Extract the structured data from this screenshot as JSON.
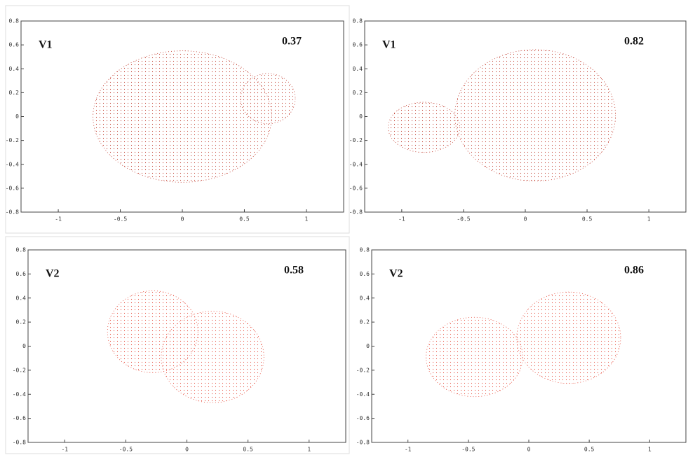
{
  "chart_data": [
    {
      "type": "ellipse",
      "label": "V1",
      "annotation": "0.37",
      "color": "#c0392b",
      "xlim": [
        -1.3,
        1.3
      ],
      "ylim": [
        -0.8,
        0.8
      ],
      "xticks": [
        -1,
        -0.5,
        0,
        0.5,
        1
      ],
      "yticks": [
        -0.8,
        -0.6,
        -0.4,
        -0.2,
        0,
        0.2,
        0.4,
        0.6,
        0.8
      ],
      "ellipses": [
        {
          "cx": 0.0,
          "cy": 0.0,
          "rx": 0.72,
          "ry": 0.55
        },
        {
          "cx": 0.69,
          "cy": 0.15,
          "rx": 0.22,
          "ry": 0.21
        }
      ]
    },
    {
      "type": "ellipse",
      "label": "V1",
      "annotation": "0.82",
      "color": "#c0392b",
      "xlim": [
        -1.3,
        1.3
      ],
      "ylim": [
        -0.8,
        0.8
      ],
      "xticks": [
        -1,
        -0.5,
        0,
        0.5,
        1
      ],
      "yticks": [
        -0.8,
        -0.6,
        -0.4,
        -0.2,
        0,
        0.2,
        0.4,
        0.6,
        0.8
      ],
      "ellipses": [
        {
          "cx": -0.82,
          "cy": -0.09,
          "rx": 0.29,
          "ry": 0.21
        },
        {
          "cx": 0.08,
          "cy": 0.01,
          "rx": 0.65,
          "ry": 0.55
        }
      ]
    },
    {
      "type": "ellipse",
      "label": "V2",
      "annotation": "0.58",
      "color": "#e74c3c",
      "xlim": [
        -1.3,
        1.3
      ],
      "ylim": [
        -0.8,
        0.8
      ],
      "xticks": [
        -1,
        -0.5,
        0,
        0.5,
        1
      ],
      "yticks": [
        -0.8,
        -0.6,
        -0.4,
        -0.2,
        0,
        0.2,
        0.4,
        0.6,
        0.8
      ],
      "ellipses": [
        {
          "cx": -0.28,
          "cy": 0.12,
          "rx": 0.37,
          "ry": 0.34
        },
        {
          "cx": 0.21,
          "cy": -0.09,
          "rx": 0.42,
          "ry": 0.38
        }
      ]
    },
    {
      "type": "ellipse",
      "label": "V2",
      "annotation": "0.86",
      "color": "#e74c3c",
      "xlim": [
        -1.3,
        1.3
      ],
      "ylim": [
        -0.8,
        0.8
      ],
      "xticks": [
        -1,
        -0.5,
        0,
        0.5,
        1
      ],
      "yticks": [
        -0.8,
        -0.6,
        -0.4,
        -0.2,
        0,
        0.2,
        0.4,
        0.6,
        0.8
      ],
      "ellipses": [
        {
          "cx": -0.45,
          "cy": -0.09,
          "rx": 0.4,
          "ry": 0.33
        },
        {
          "cx": 0.33,
          "cy": 0.07,
          "rx": 0.43,
          "ry": 0.38
        }
      ]
    }
  ]
}
